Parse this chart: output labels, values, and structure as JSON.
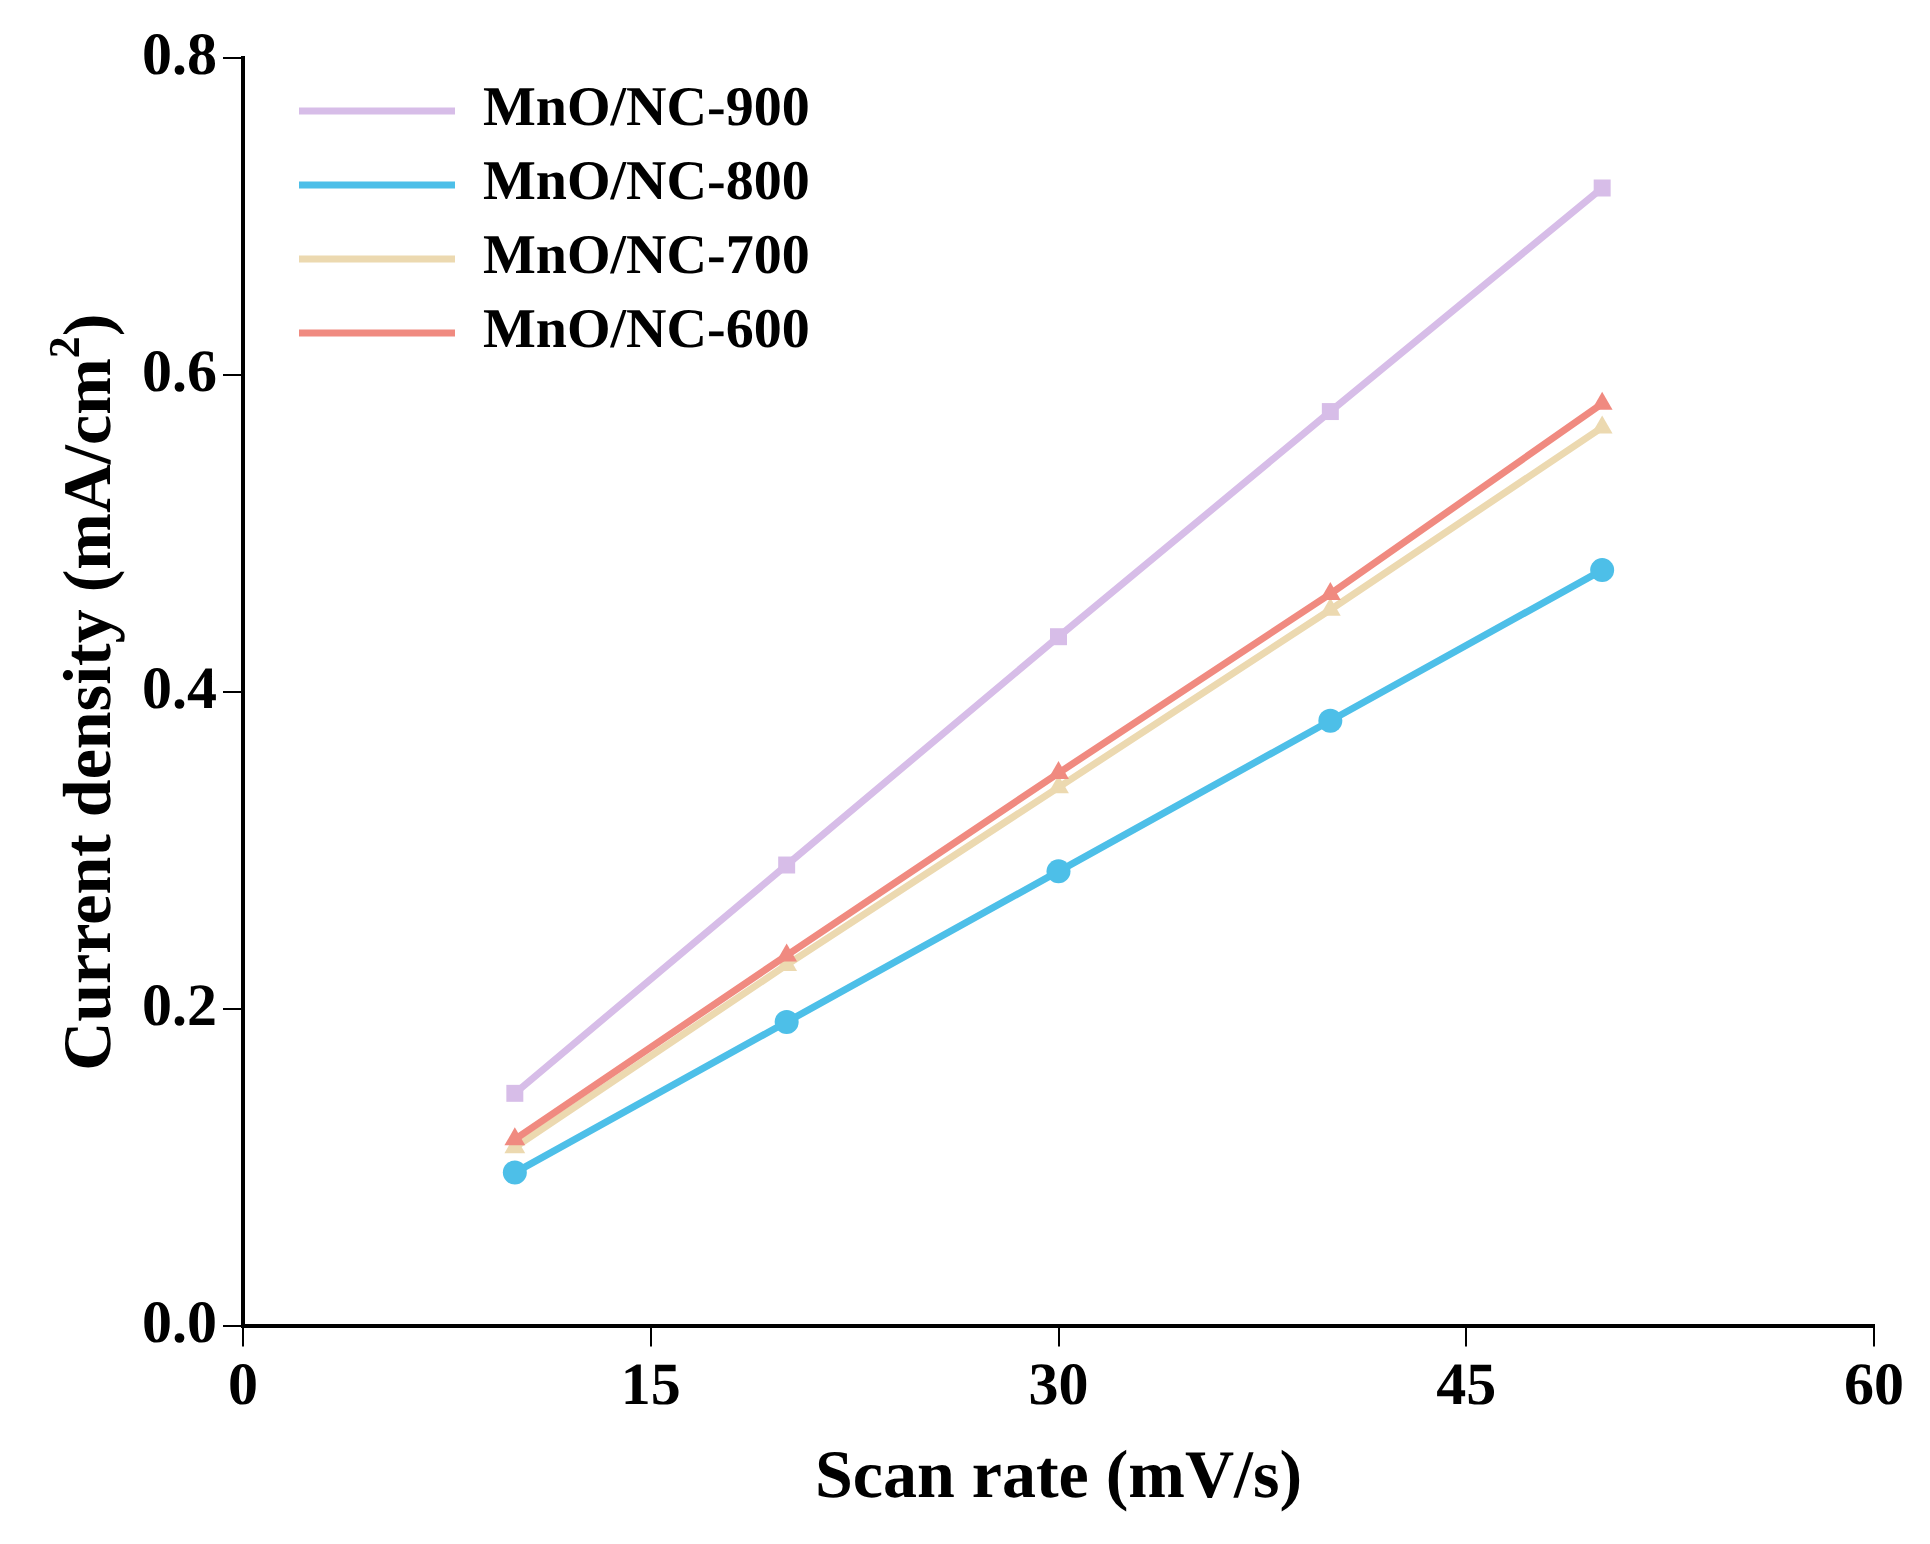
{
  "chart_data": {
    "type": "line",
    "xlabel": "Scan rate (mV/s)",
    "ylabel": "Current density (mA/cm$^{2}$)",
    "x": [
      10,
      20,
      30,
      40,
      50
    ],
    "series": [
      {
        "name": "MnO/NC-900",
        "color": "#d7bde8",
        "marker": "square",
        "values": [
          0.147,
          0.291,
          0.435,
          0.577,
          0.718
        ]
      },
      {
        "name": "MnO/NC-800",
        "color": "#4dbfe8",
        "marker": "circle",
        "values": [
          0.097,
          0.192,
          0.287,
          0.382,
          0.477
        ]
      },
      {
        "name": "MnO/NC-700",
        "color": "#ecd9b0",
        "marker": "triangle",
        "values": [
          0.113,
          0.228,
          0.34,
          0.452,
          0.567
        ]
      },
      {
        "name": "MnO/NC-600",
        "color": "#f08a80",
        "marker": "triangle",
        "values": [
          0.118,
          0.234,
          0.349,
          0.462,
          0.582
        ]
      }
    ],
    "xlim": [
      0,
      60
    ],
    "xticks": [
      0,
      15,
      30,
      45,
      60
    ],
    "ylim": [
      0,
      0.8
    ],
    "yticks": [
      {
        "value": 0,
        "label": "0.0"
      },
      {
        "value": 0.2,
        "label": "0.2"
      },
      {
        "value": 0.4,
        "label": "0.4"
      },
      {
        "value": 0.6,
        "label": "0.6"
      },
      {
        "value": 0.8,
        "label": "0.8"
      }
    ],
    "grid": false,
    "legend": "top left",
    "line_style": "solid"
  }
}
